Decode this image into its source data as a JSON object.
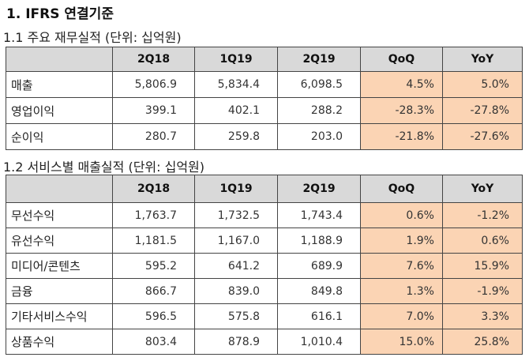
{
  "heading": "1. IFRS 연결기준",
  "section1": {
    "title": "1.1 주요 재무실적 (단위: 십억원)",
    "columns": [
      "",
      "2Q18",
      "1Q19",
      "2Q19",
      "QoQ",
      "YoY"
    ],
    "rows": [
      {
        "label": "매출",
        "q2_18": "5,806.9",
        "q1_19": "5,834.4",
        "q2_19": "6,098.5",
        "qoq": "4.5%",
        "yoy": "5.0%"
      },
      {
        "label": "영업이익",
        "q2_18": "399.1",
        "q1_19": "402.1",
        "q2_19": "288.2",
        "qoq": "-28.3%",
        "yoy": "-27.8%"
      },
      {
        "label": "순이익",
        "q2_18": "280.7",
        "q1_19": "259.8",
        "q2_19": "203.0",
        "qoq": "-21.8%",
        "yoy": "-27.6%"
      }
    ]
  },
  "section2": {
    "title": "1.2 서비스별 매출실적 (단위: 십억원)",
    "columns": [
      "",
      "2Q18",
      "1Q19",
      "2Q19",
      "QoQ",
      "YoY"
    ],
    "rows": [
      {
        "label": "무선수익",
        "q2_18": "1,763.7",
        "q1_19": "1,732.5",
        "q2_19": "1,743.4",
        "qoq": "0.6%",
        "yoy": "-1.2%"
      },
      {
        "label": "유선수익",
        "q2_18": "1,181.5",
        "q1_19": "1,167.0",
        "q2_19": "1,188.9",
        "qoq": "1.9%",
        "yoy": "0.6%"
      },
      {
        "label": "미디어/콘텐츠",
        "q2_18": "595.2",
        "q1_19": "641.2",
        "q2_19": "689.9",
        "qoq": "7.6%",
        "yoy": "15.9%"
      },
      {
        "label": "금융",
        "q2_18": "866.7",
        "q1_19": "839.0",
        "q2_19": "849.8",
        "qoq": "1.3%",
        "yoy": "-1.9%"
      },
      {
        "label": "기타서비스수익",
        "q2_18": "596.5",
        "q1_19": "575.8",
        "q2_19": "616.1",
        "qoq": "7.0%",
        "yoy": "3.3%"
      },
      {
        "label": "상품수익",
        "q2_18": "803.4",
        "q1_19": "878.9",
        "q2_19": "1,010.4",
        "qoq": "15.0%",
        "yoy": "25.8%"
      }
    ]
  },
  "colors": {
    "header_bg": "#d9d9d9",
    "highlight_bg": "#fbd4b4",
    "border": "#444444"
  }
}
